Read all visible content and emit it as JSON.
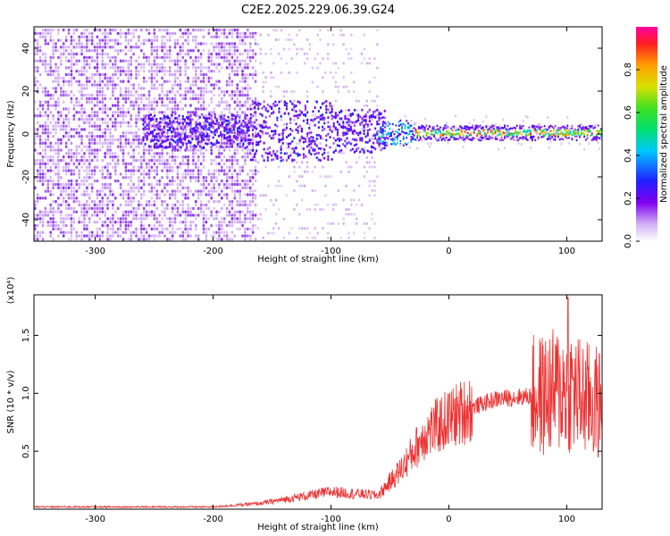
{
  "title": "C2E2.2025.229.06.39.G24",
  "chart_data": [
    {
      "type": "heatmap",
      "xlabel": "Height of straight line (km)",
      "ylabel": "Frequency (Hz)",
      "xlim": [
        -352,
        130
      ],
      "ylim": [
        -50,
        50
      ],
      "x_ticks": [
        -300,
        -200,
        -100,
        0,
        100
      ],
      "y_ticks": [
        -40,
        -20,
        0,
        20,
        40
      ],
      "colorbar": {
        "label": "Normalized spectral amplitude",
        "range": [
          0,
          1
        ],
        "ticks": [
          "0.0",
          "0.2",
          "0.4",
          "0.6",
          "0.8"
        ],
        "colors": [
          "#ffffff",
          "#d2b0f5",
          "#9a4cf0",
          "#6a00f0",
          "#2020ff",
          "#00c0ff",
          "#00e0a0",
          "#20e020",
          "#c8e000",
          "#ffa000",
          "#ff2020",
          "#ff00a0"
        ]
      },
      "description_regions": [
        {
          "x_range": [
            -352,
            -165
          ],
          "freq_band": [
            -50,
            50
          ],
          "amplitude": 0.15
        },
        {
          "x_range": [
            -165,
            -60
          ],
          "freq_band": [
            -12,
            18
          ],
          "amplitude": 0.3
        },
        {
          "x_range": [
            -60,
            130
          ],
          "freq_band": [
            -3,
            6
          ],
          "amplitude": 0.8
        }
      ]
    },
    {
      "type": "line",
      "xlabel": "Height of straight line (km)",
      "ylabel": "SNR (10 * v/v)",
      "y_multiplier": "(x10⁴)",
      "xlim": [
        -352,
        130
      ],
      "ylim": [
        0,
        1.85
      ],
      "x_ticks": [
        -300,
        -200,
        -100,
        0,
        100
      ],
      "y_ticks": [
        "0.5",
        "1.0",
        "1.5"
      ],
      "color": "#ee3030",
      "envelope": [
        {
          "x": -352,
          "y": 0.02
        },
        {
          "x": -200,
          "y": 0.02
        },
        {
          "x": -160,
          "y": 0.05
        },
        {
          "x": -100,
          "y": 0.15
        },
        {
          "x": -60,
          "y": 0.12
        },
        {
          "x": -40,
          "y": 0.35
        },
        {
          "x": -20,
          "y": 0.65
        },
        {
          "x": 0,
          "y": 0.78
        },
        {
          "x": 20,
          "y": 0.88
        },
        {
          "x": 40,
          "y": 0.95
        },
        {
          "x": 60,
          "y": 0.97
        },
        {
          "x": 80,
          "y": 0.98
        },
        {
          "x": 100,
          "y": 1.05
        },
        {
          "x": 115,
          "y": 0.95
        },
        {
          "x": 130,
          "y": 0.9
        }
      ],
      "peak": {
        "x": 101,
        "y": 1.83
      }
    }
  ]
}
